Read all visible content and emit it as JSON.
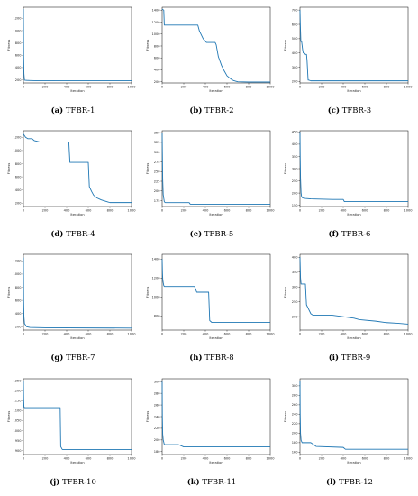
{
  "figure": {
    "colors": {
      "line": "#1f77b4",
      "axis": "#000000"
    }
  },
  "chart_data": [
    {
      "caption_letter": "(a)",
      "caption_text": "TFBR-1",
      "type": "line",
      "xlabel": "Iteration",
      "ylabel": "Fitness",
      "xlim": [
        0,
        1000
      ],
      "xticks": [
        0,
        200,
        400,
        600,
        800,
        1000
      ],
      "ylim": [
        150,
        1380
      ],
      "yticks": [
        200,
        400,
        600,
        800,
        1000,
        1200
      ],
      "series": [
        {
          "x": [
            0,
            2,
            5,
            10,
            30,
            60,
            100,
            300,
            600,
            1000
          ],
          "y": [
            1350,
            600,
            300,
            195,
            192,
            190,
            188,
            186,
            185,
            185
          ]
        }
      ]
    },
    {
      "caption_letter": "(b)",
      "caption_text": "TFBR-2",
      "type": "line",
      "xlabel": "Iteration",
      "ylabel": "Fitness",
      "xlim": [
        0,
        1000
      ],
      "xticks": [
        0,
        200,
        400,
        600,
        800,
        1000
      ],
      "ylim": [
        180,
        1450
      ],
      "yticks": [
        200,
        400,
        600,
        800,
        1000,
        1200,
        1400
      ],
      "series": [
        {
          "x": [
            0,
            15,
            20,
            40,
            50,
            60,
            330,
            345,
            380,
            410,
            490,
            500,
            520,
            550,
            575,
            600,
            620,
            640,
            660,
            680,
            700,
            800,
            1000
          ],
          "y": [
            1420,
            1400,
            1150,
            1150,
            1150,
            1150,
            1150,
            1050,
            920,
            860,
            860,
            820,
            620,
            470,
            380,
            300,
            270,
            240,
            220,
            210,
            200,
            195,
            195
          ]
        }
      ]
    },
    {
      "caption_letter": "(c)",
      "caption_text": "TFBR-3",
      "type": "line",
      "xlabel": "Iteration",
      "ylabel": "Fitness",
      "xlim": [
        0,
        1000
      ],
      "xticks": [
        0,
        200,
        400,
        600,
        800,
        1000
      ],
      "ylim": [
        190,
        720
      ],
      "yticks": [
        200,
        300,
        400,
        500,
        600,
        700
      ],
      "series": [
        {
          "x": [
            0,
            3,
            8,
            15,
            25,
            30,
            40,
            50,
            60,
            65,
            75,
            80,
            100,
            200,
            1000
          ],
          "y": [
            700,
            600,
            480,
            480,
            420,
            400,
            400,
            390,
            390,
            350,
            210,
            210,
            205,
            205,
            205
          ]
        }
      ]
    },
    {
      "caption_letter": "(d)",
      "caption_text": "TFBR-4",
      "type": "line",
      "xlabel": "Iteration",
      "ylabel": "Fitness",
      "xlim": [
        0,
        1000
      ],
      "xticks": [
        0,
        200,
        400,
        600,
        800,
        1000
      ],
      "ylim": [
        150,
        1300
      ],
      "yticks": [
        200,
        400,
        600,
        800,
        1000,
        1200
      ],
      "series": [
        {
          "x": [
            0,
            20,
            40,
            80,
            100,
            150,
            420,
            430,
            600,
            610,
            630,
            650,
            680,
            720,
            780,
            800,
            1000
          ],
          "y": [
            1250,
            1200,
            1180,
            1180,
            1150,
            1130,
            1130,
            820,
            820,
            450,
            380,
            320,
            280,
            250,
            220,
            210,
            210
          ]
        }
      ]
    },
    {
      "caption_letter": "(e)",
      "caption_text": "TFBR-5",
      "type": "line",
      "xlabel": "Iteration",
      "ylabel": "Fitness",
      "xlim": [
        0,
        1000
      ],
      "xticks": [
        0,
        200,
        400,
        600,
        800,
        1000
      ],
      "ylim": [
        160,
        355
      ],
      "yticks": [
        175,
        200,
        225,
        250,
        275,
        300,
        325,
        350
      ],
      "series": [
        {
          "x": [
            0,
            2,
            5,
            10,
            20,
            30,
            250,
            260,
            1000
          ],
          "y": [
            350,
            300,
            230,
            190,
            172,
            170,
            170,
            166,
            166
          ]
        }
      ]
    },
    {
      "caption_letter": "(f)",
      "caption_text": "TFBR-6",
      "type": "line",
      "xlabel": "Iteration",
      "ylabel": "Fitness",
      "xlim": [
        0,
        1000
      ],
      "xticks": [
        0,
        200,
        400,
        600,
        800,
        1000
      ],
      "ylim": [
        145,
        455
      ],
      "yticks": [
        150,
        200,
        250,
        300,
        350,
        400,
        450
      ],
      "series": [
        {
          "x": [
            0,
            2,
            5,
            10,
            15,
            25,
            50,
            100,
            300,
            400,
            410,
            1000
          ],
          "y": [
            450,
            350,
            260,
            200,
            185,
            180,
            178,
            176,
            174,
            174,
            165,
            165
          ]
        }
      ]
    },
    {
      "caption_letter": "(g)",
      "caption_text": "TFBR-7",
      "type": "line",
      "xlabel": "Iteration",
      "ylabel": "Fitness",
      "xlim": [
        0,
        1000
      ],
      "xticks": [
        0,
        200,
        400,
        600,
        800,
        1000
      ],
      "ylim": [
        150,
        1300
      ],
      "yticks": [
        200,
        400,
        600,
        800,
        1000,
        1200
      ],
      "series": [
        {
          "x": [
            0,
            2,
            5,
            10,
            30,
            60,
            200,
            1000
          ],
          "y": [
            1250,
            600,
            350,
            250,
            200,
            190,
            185,
            180
          ]
        }
      ]
    },
    {
      "caption_letter": "(h)",
      "caption_text": "TFBR-8",
      "type": "line",
      "xlabel": "Iteration",
      "ylabel": "Fitness",
      "xlim": [
        0,
        1000
      ],
      "xticks": [
        0,
        200,
        400,
        600,
        800,
        1000
      ],
      "ylim": [
        650,
        1450
      ],
      "yticks": [
        800,
        1000,
        1200,
        1400
      ],
      "series": [
        {
          "x": [
            0,
            3,
            6,
            10,
            15,
            20,
            300,
            320,
            430,
            440,
            460,
            1000
          ],
          "y": [
            1400,
            1250,
            1180,
            1150,
            1120,
            1110,
            1110,
            1050,
            1050,
            750,
            730,
            730
          ]
        }
      ]
    },
    {
      "caption_letter": "(i)",
      "caption_text": "TFBR-9",
      "type": "line",
      "xlabel": "Iteration",
      "ylabel": "Fitness",
      "xlim": [
        0,
        1000
      ],
      "xticks": [
        0,
        200,
        400,
        600,
        800,
        1000
      ],
      "ylim": [
        155,
        410
      ],
      "yticks": [
        200,
        250,
        300,
        350,
        400
      ],
      "series": [
        {
          "x": [
            0,
            5,
            10,
            50,
            60,
            80,
            100,
            120,
            300,
            500,
            550,
            700,
            800,
            900,
            1000
          ],
          "y": [
            400,
            330,
            310,
            310,
            240,
            225,
            210,
            205,
            205,
            195,
            190,
            185,
            180,
            178,
            175
          ]
        }
      ]
    },
    {
      "caption_letter": "(j)",
      "caption_text": "TFBR-10",
      "type": "line",
      "xlabel": "Iteration",
      "ylabel": "Fitness",
      "xlim": [
        0,
        1000
      ],
      "xticks": [
        0,
        200,
        400,
        600,
        800,
        1000
      ],
      "ylim": [
        880,
        1260
      ],
      "yticks": [
        900,
        950,
        1000,
        1050,
        1100,
        1150,
        1200,
        1250
      ],
      "series": [
        {
          "x": [
            0,
            2,
            5,
            10,
            340,
            345,
            360,
            1000
          ],
          "y": [
            1250,
            1160,
            1120,
            1115,
            1115,
            920,
            905,
            905
          ]
        }
      ]
    },
    {
      "caption_letter": "(k)",
      "caption_text": "TFBR-11",
      "type": "line",
      "xlabel": "Iteration",
      "ylabel": "Fitness",
      "xlim": [
        0,
        1000
      ],
      "xticks": [
        0,
        200,
        400,
        600,
        800,
        1000
      ],
      "ylim": [
        175,
        305
      ],
      "yticks": [
        180,
        200,
        220,
        240,
        260,
        280,
        300
      ],
      "series": [
        {
          "x": [
            0,
            2,
            5,
            10,
            20,
            150,
            200,
            1000
          ],
          "y": [
            300,
            240,
            210,
            200,
            192,
            192,
            188,
            188
          ]
        }
      ]
    },
    {
      "caption_letter": "(l)",
      "caption_text": "TFBR-12",
      "type": "line",
      "xlabel": "Iteration",
      "ylabel": "Fitness",
      "xlim": [
        0,
        1000
      ],
      "xticks": [
        0,
        200,
        400,
        600,
        800,
        1000
      ],
      "ylim": [
        155,
        315
      ],
      "yticks": [
        160,
        180,
        200,
        220,
        240,
        260,
        280,
        300
      ],
      "series": [
        {
          "x": [
            0,
            2,
            5,
            10,
            20,
            100,
            150,
            400,
            420,
            1000
          ],
          "y": [
            310,
            240,
            200,
            185,
            180,
            180,
            172,
            170,
            166,
            166
          ]
        }
      ]
    }
  ]
}
